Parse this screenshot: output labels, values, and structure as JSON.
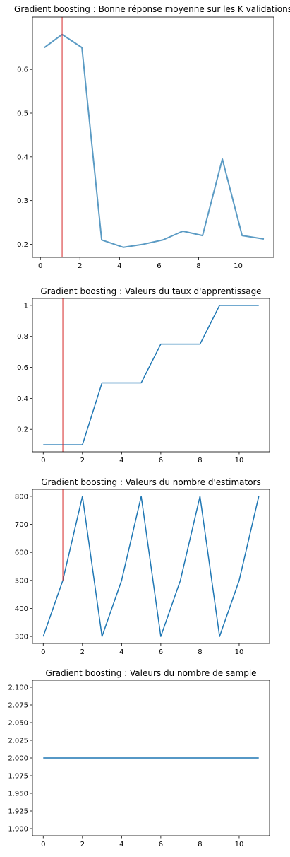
{
  "chart_data": [
    {
      "type": "line",
      "title": "Gradient boosting : Bonne réponse moyenne sur les K validations",
      "xlabel": "",
      "ylabel": "",
      "x": [
        0.2,
        1.1,
        2.1,
        3.1,
        4.2,
        5.2,
        6.2,
        7.2,
        8.2,
        9.2,
        10.2,
        11.3
      ],
      "values": [
        0.65,
        0.68,
        0.65,
        0.21,
        0.193,
        0.2,
        0.21,
        0.23,
        0.22,
        0.395,
        0.22,
        0.212
      ],
      "xlim": [
        -0.4,
        11.8
      ],
      "ylim": [
        0.17,
        0.72
      ],
      "xticks": [
        0,
        2,
        4,
        6,
        8,
        10
      ],
      "yticks": [
        0.2,
        0.3,
        0.4,
        0.5,
        0.6
      ],
      "vline_x": 1.1,
      "line_color": "#5b9bc4",
      "vline_color": "#d62728",
      "grid": false
    },
    {
      "type": "line",
      "title": "Gradient boosting : Valeurs du taux d'apprentissage",
      "xlabel": "",
      "ylabel": "",
      "x": [
        0,
        1,
        2,
        3,
        4,
        5,
        6,
        7,
        8,
        9,
        10,
        11
      ],
      "values": [
        0.1,
        0.1,
        0.1,
        0.5,
        0.5,
        0.5,
        0.75,
        0.75,
        0.75,
        1.0,
        1.0,
        1.0
      ],
      "xlim": [
        -0.55,
        11.55
      ],
      "ylim": [
        0.055,
        1.045
      ],
      "xticks": [
        0,
        2,
        4,
        6,
        8,
        10
      ],
      "yticks": [
        0.2,
        0.4,
        0.6,
        0.8,
        1.0
      ],
      "vline_x": 1,
      "line_color": "#1f77b4",
      "vline_color": "#d62728",
      "grid": false
    },
    {
      "type": "line",
      "title": "Gradient boosting : Valeurs du nombre d'estimators",
      "xlabel": "",
      "ylabel": "",
      "x": [
        0,
        1,
        2,
        3,
        4,
        5,
        6,
        7,
        8,
        9,
        10,
        11
      ],
      "values": [
        300,
        500,
        800,
        300,
        500,
        800,
        300,
        500,
        800,
        300,
        500,
        800
      ],
      "xlim": [
        -0.55,
        11.55
      ],
      "ylim": [
        275,
        825
      ],
      "xticks": [
        0,
        2,
        4,
        6,
        8,
        10
      ],
      "yticks": [
        300,
        400,
        500,
        600,
        700,
        800
      ],
      "vline_x": 1,
      "vline_from": 500,
      "line_color": "#1f77b4",
      "vline_color": "#d62728",
      "grid": false
    },
    {
      "type": "line",
      "title": "Gradient boosting : Valeurs du nombre de sample",
      "xlabel": "",
      "ylabel": "",
      "x": [
        0,
        1,
        2,
        3,
        4,
        5,
        6,
        7,
        8,
        9,
        10,
        11
      ],
      "values": [
        2,
        2,
        2,
        2,
        2,
        2,
        2,
        2,
        2,
        2,
        2,
        2
      ],
      "xlim": [
        -0.55,
        11.55
      ],
      "ylim": [
        1.89,
        2.11
      ],
      "xticks": [
        0,
        2,
        4,
        6,
        8,
        10
      ],
      "yticks": [
        1.9,
        1.925,
        1.95,
        1.975,
        2.0,
        2.025,
        2.05,
        2.075,
        2.1
      ],
      "ytick_labels": [
        "1.900",
        "1.925",
        "1.950",
        "1.975",
        "2.000",
        "2.025",
        "2.050",
        "2.075",
        "2.100"
      ],
      "line_color": "#1f77b4",
      "grid": false
    }
  ]
}
